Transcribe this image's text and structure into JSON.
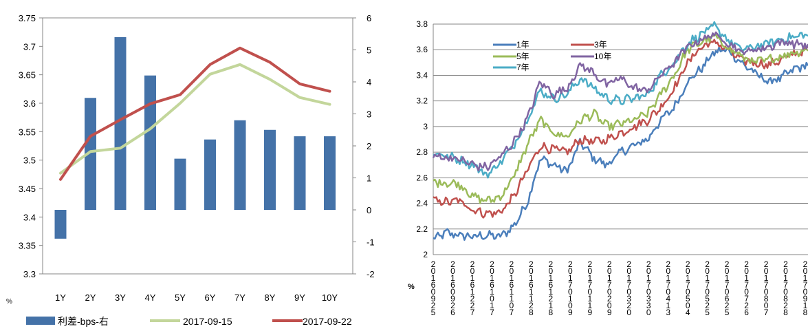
{
  "chart_data": [
    {
      "type": "bar",
      "title": "",
      "categories": [
        "1Y",
        "2Y",
        "3Y",
        "4Y",
        "5Y",
        "6Y",
        "7Y",
        "8Y",
        "9Y",
        "10Y"
      ],
      "y_left_label": "%",
      "y_left_ticks": [
        "3.75",
        "3.7",
        "3.65",
        "3.6",
        "3.55",
        "3.5",
        "3.45",
        "3.4",
        "3.35",
        "3.3"
      ],
      "y_right_ticks": [
        "6",
        "5",
        "4",
        "3",
        "2",
        "1",
        "0",
        "-1",
        "-2"
      ],
      "ylim_left": [
        3.3,
        3.75
      ],
      "ylim_right": [
        -2,
        6
      ],
      "bar_series": {
        "name": "利差-bps-右",
        "color": "#4472a8",
        "values": [
          -0.9,
          3.5,
          5.4,
          4.2,
          1.6,
          2.2,
          2.8,
          2.5,
          2.3,
          2.3
        ]
      },
      "line_series": [
        {
          "name": "2017-09-15",
          "color": "#c3d69b",
          "values": [
            3.477,
            3.515,
            3.521,
            3.555,
            3.6,
            3.651,
            3.668,
            3.642,
            3.61,
            3.598
          ]
        },
        {
          "name": "2017-09-22",
          "color": "#c0504d",
          "values": [
            3.466,
            3.542,
            3.571,
            3.599,
            3.615,
            3.668,
            3.697,
            3.672,
            3.634,
            3.621
          ]
        }
      ],
      "legend": [
        "利差-bps-右",
        "2017-09-15",
        "2017-09-22"
      ],
      "legend_position": "bottom",
      "grid": false
    },
    {
      "type": "line",
      "title": "",
      "y_label": "%",
      "y_ticks": [
        "3.8",
        "3.6",
        "3.4",
        "3.2",
        "3",
        "2.8",
        "2.6",
        "2.4",
        "2.2",
        "2"
      ],
      "ylim": [
        2,
        3.8
      ],
      "x_ticks": [
        "2016-09-25",
        "2016-09-26",
        "2016-12-27",
        "2016-10-17",
        "2016-11-07",
        "2016-11-28",
        "2016-12-18",
        "2017-01-09",
        "2017-01-19",
        "2017-02-09",
        "2017-03-20",
        "2017-03-30",
        "2017-04-13",
        "2017-05-04",
        "2017-05-25",
        "2017-06-25",
        "2017-07-26",
        "2017-08-07",
        "2017-08-28",
        "2017-09-18"
      ],
      "grid": true,
      "legend_position": "top-left",
      "series": [
        {
          "name": "1年",
          "color": "#4a7ebb",
          "keypoints": [
            2.12,
            2.17,
            2.15,
            2.14,
            2.15,
            2.14,
            2.22,
            2.4,
            2.75,
            2.7,
            2.65,
            2.88,
            2.75,
            2.7,
            2.8,
            2.85,
            2.9,
            3.05,
            3.15,
            3.35,
            3.45,
            3.58,
            3.6,
            3.5,
            3.42,
            3.35,
            3.38,
            3.45,
            3.48
          ]
        },
        {
          "name": "3年",
          "color": "#c0504d",
          "keypoints": [
            2.42,
            2.41,
            2.42,
            2.35,
            2.32,
            2.33,
            2.45,
            2.65,
            2.85,
            2.82,
            2.8,
            2.9,
            2.88,
            2.9,
            2.95,
            3.0,
            3.05,
            3.15,
            3.3,
            3.5,
            3.62,
            3.66,
            3.6,
            3.52,
            3.5,
            3.48,
            3.52,
            3.57,
            3.6
          ]
        },
        {
          "name": "5年",
          "color": "#9bbb59",
          "keypoints": [
            2.57,
            2.56,
            2.55,
            2.45,
            2.42,
            2.45,
            2.6,
            2.85,
            3.05,
            2.95,
            2.92,
            3.05,
            3.1,
            3.0,
            3.02,
            3.05,
            3.1,
            3.25,
            3.4,
            3.6,
            3.66,
            3.7,
            3.62,
            3.55,
            3.5,
            3.52,
            3.55,
            3.58,
            3.6
          ]
        },
        {
          "name": "7年",
          "color": "#4bacc6",
          "keypoints": [
            2.8,
            2.77,
            2.74,
            2.7,
            2.62,
            2.72,
            2.85,
            3.05,
            3.28,
            3.22,
            3.25,
            3.38,
            3.3,
            3.22,
            3.2,
            3.22,
            3.25,
            3.4,
            3.5,
            3.65,
            3.72,
            3.78,
            3.68,
            3.6,
            3.62,
            3.65,
            3.68,
            3.7,
            3.72
          ]
        },
        {
          "name": "10年",
          "color": "#8064a2",
          "keypoints": [
            2.77,
            2.76,
            2.74,
            2.7,
            2.68,
            2.76,
            2.88,
            3.05,
            3.35,
            3.25,
            3.3,
            3.48,
            3.42,
            3.32,
            3.38,
            3.3,
            3.28,
            3.4,
            3.5,
            3.62,
            3.68,
            3.72,
            3.66,
            3.58,
            3.6,
            3.62,
            3.66,
            3.65,
            3.63
          ]
        }
      ]
    }
  ]
}
